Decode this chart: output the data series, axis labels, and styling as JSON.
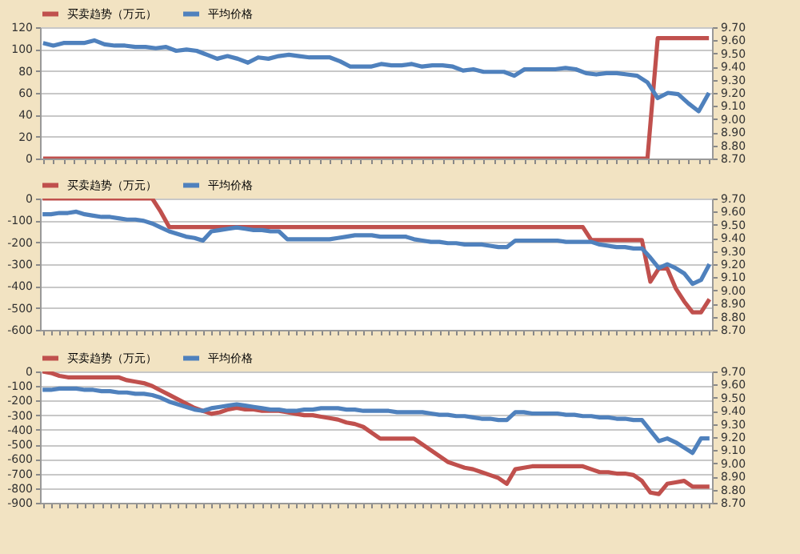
{
  "chart_data": [
    {
      "type": "line",
      "categories": [
        null,
        null,
        null,
        null,
        null,
        null,
        null,
        null,
        null,
        null,
        null,
        null,
        null,
        null,
        null,
        null,
        null,
        null,
        null,
        null,
        null,
        null,
        null,
        null,
        null,
        null,
        null,
        null,
        null,
        null,
        null,
        null,
        null,
        null,
        null,
        null,
        null,
        null,
        null,
        null,
        null,
        null,
        null,
        null,
        null,
        null,
        null,
        null,
        null,
        null,
        null,
        null,
        null,
        null,
        null,
        null,
        null,
        null,
        null,
        null,
        null,
        null,
        null,
        null,
        null,
        null
      ],
      "series": [
        {
          "name": "买卖趋势（万元）",
          "color": "#c0504d",
          "values": [
            0,
            0,
            0,
            0,
            0,
            0,
            0,
            0,
            0,
            0,
            0,
            0,
            0,
            0,
            0,
            0,
            0,
            0,
            0,
            0,
            0,
            0,
            0,
            0,
            0,
            0,
            0,
            0,
            0,
            0,
            0,
            0,
            0,
            0,
            0,
            0,
            0,
            0,
            0,
            0,
            0,
            0,
            0,
            0,
            0,
            0,
            0,
            0,
            0,
            0,
            0,
            0,
            0,
            0,
            0,
            0,
            0,
            0,
            0,
            0,
            110,
            110,
            110,
            110,
            110,
            110
          ]
        },
        {
          "name": "平均价格",
          "color": "#4f81bd",
          "axis": "y2",
          "values": [
            9.58,
            9.56,
            9.58,
            9.58,
            9.58,
            9.6,
            9.57,
            9.56,
            9.56,
            9.55,
            9.55,
            9.54,
            9.55,
            9.52,
            9.53,
            9.52,
            9.49,
            9.46,
            9.48,
            9.46,
            9.43,
            9.47,
            9.46,
            9.48,
            9.49,
            9.48,
            9.47,
            9.47,
            9.47,
            9.44,
            9.4,
            9.4,
            9.4,
            9.42,
            9.41,
            9.41,
            9.42,
            9.4,
            9.41,
            9.41,
            9.4,
            9.37,
            9.38,
            9.36,
            9.36,
            9.36,
            9.33,
            9.38,
            9.38,
            9.38,
            9.38,
            9.39,
            9.38,
            9.35,
            9.34,
            9.35,
            9.35,
            9.34,
            9.33,
            9.28,
            9.16,
            9.2,
            9.19,
            9.12,
            9.06,
            9.2
          ]
        }
      ],
      "ylim": [
        0,
        120
      ],
      "yticks": [
        0,
        20,
        40,
        60,
        80,
        100,
        120
      ],
      "y2lim": [
        8.7,
        9.7
      ],
      "y2ticks": [
        {
          "value": 8.7,
          "label": "8.70"
        },
        {
          "value": 8.8,
          "label": "8.80"
        },
        {
          "value": 8.9,
          "label": "8.90"
        },
        {
          "value": 9.0,
          "label": "9.00"
        },
        {
          "value": 9.1,
          "label": "9.10"
        },
        {
          "value": 9.2,
          "label": "9.20"
        },
        {
          "value": 9.3,
          "label": "9.30"
        },
        {
          "value": 9.4,
          "label": "9.40"
        },
        {
          "value": 9.5,
          "label": "9.50"
        },
        {
          "value": 9.6,
          "label": "9.60"
        },
        {
          "value": 9.7,
          "label": "9.70"
        }
      ],
      "grid": "y",
      "legend": "top"
    },
    {
      "type": "line",
      "categories": [
        null,
        null,
        null,
        null,
        null,
        null,
        null,
        null,
        null,
        null,
        null,
        null,
        null,
        null,
        null,
        null,
        null,
        null,
        null,
        null,
        null,
        null,
        null,
        null,
        null,
        null,
        null,
        null,
        null,
        null,
        null,
        null,
        null,
        null,
        null,
        null,
        null,
        null,
        null,
        null,
        null,
        null,
        null,
        null,
        null,
        null,
        null,
        null,
        null,
        null,
        null,
        null,
        null,
        null,
        null,
        null,
        null,
        null,
        null,
        null,
        null,
        null,
        null,
        null,
        null,
        null,
        null,
        null,
        null,
        null,
        null,
        null,
        null,
        null,
        null,
        null,
        null,
        null,
        null,
        null
      ],
      "series": [
        {
          "name": "买卖趋势（万元）",
          "color": "#c0504d",
          "values": [
            0,
            0,
            0,
            0,
            0,
            0,
            0,
            0,
            0,
            0,
            0,
            0,
            0,
            0,
            -60,
            -130,
            -130,
            -130,
            -130,
            -130,
            -130,
            -130,
            -130,
            -130,
            -130,
            -130,
            -130,
            -130,
            -130,
            -130,
            -130,
            -130,
            -130,
            -130,
            -130,
            -130,
            -130,
            -130,
            -130,
            -130,
            -130,
            -130,
            -130,
            -130,
            -130,
            -130,
            -130,
            -130,
            -130,
            -130,
            -130,
            -130,
            -130,
            -130,
            -130,
            -130,
            -130,
            -130,
            -130,
            -130,
            -130,
            -130,
            -130,
            -130,
            -130,
            -190,
            -190,
            -190,
            -190,
            -190,
            -190,
            -190,
            -380,
            -320,
            -320,
            -410,
            -470,
            -520,
            -520,
            -460
          ]
        },
        {
          "name": "平均价格",
          "color": "#4f81bd",
          "axis": "y2",
          "values": [
            9.58,
            9.58,
            9.59,
            9.59,
            9.6,
            9.58,
            9.57,
            9.56,
            9.56,
            9.55,
            9.54,
            9.54,
            9.53,
            9.51,
            9.48,
            9.45,
            9.43,
            9.41,
            9.4,
            9.38,
            9.45,
            9.46,
            9.47,
            9.48,
            9.47,
            9.46,
            9.46,
            9.45,
            9.45,
            9.39,
            9.39,
            9.39,
            9.39,
            9.39,
            9.39,
            9.4,
            9.41,
            9.42,
            9.42,
            9.42,
            9.41,
            9.41,
            9.41,
            9.41,
            9.39,
            9.38,
            9.37,
            9.37,
            9.36,
            9.36,
            9.35,
            9.35,
            9.35,
            9.34,
            9.33,
            9.33,
            9.38,
            9.38,
            9.38,
            9.38,
            9.38,
            9.38,
            9.37,
            9.37,
            9.37,
            9.37,
            9.35,
            9.34,
            9.33,
            9.33,
            9.32,
            9.32,
            9.25,
            9.17,
            9.2,
            9.17,
            9.13,
            9.05,
            9.08,
            9.2
          ]
        }
      ],
      "ylim": [
        -600,
        0
      ],
      "yticks": [
        -600,
        -500,
        -400,
        -300,
        -200,
        -100,
        0
      ],
      "y2lim": [
        8.7,
        9.7
      ],
      "y2ticks": [
        {
          "value": 8.7,
          "label": "8.70"
        },
        {
          "value": 8.8,
          "label": "8.80"
        },
        {
          "value": 8.9,
          "label": "8.90"
        },
        {
          "value": 9.0,
          "label": "9.00"
        },
        {
          "value": 9.1,
          "label": "9.10"
        },
        {
          "value": 9.2,
          "label": "9.20"
        },
        {
          "value": 9.3,
          "label": "9.30"
        },
        {
          "value": 9.4,
          "label": "9.40"
        },
        {
          "value": 9.5,
          "label": "9.50"
        },
        {
          "value": 9.6,
          "label": "9.60"
        },
        {
          "value": 9.7,
          "label": "9.70"
        }
      ],
      "grid": "y",
      "legend": "top"
    },
    {
      "type": "line",
      "categories": [
        null,
        null,
        null,
        null,
        null,
        null,
        null,
        null,
        null,
        null,
        null,
        null,
        null,
        null,
        null,
        null,
        null,
        null,
        null,
        null,
        null,
        null,
        null,
        null,
        null,
        null,
        null,
        null,
        null,
        null,
        null,
        null,
        null,
        null,
        null,
        null,
        null,
        null,
        null,
        null,
        null,
        null,
        null,
        null,
        null,
        null,
        null,
        null,
        null,
        null,
        null,
        null,
        null,
        null,
        null,
        null,
        null,
        null,
        null,
        null,
        null,
        null,
        null,
        null,
        null,
        null,
        null,
        null,
        null,
        null,
        null,
        null,
        null,
        null,
        null,
        null,
        null,
        null,
        null,
        null
      ],
      "series": [
        {
          "name": "买卖趋势（万元）",
          "color": "#c0504d",
          "values": [
            0,
            -10,
            -30,
            -40,
            -40,
            -40,
            -40,
            -40,
            -40,
            -40,
            -60,
            -70,
            -80,
            -100,
            -130,
            -160,
            -190,
            -220,
            -250,
            -270,
            -290,
            -280,
            -260,
            -250,
            -260,
            -260,
            -270,
            -270,
            -270,
            -280,
            -290,
            -300,
            -300,
            -310,
            -320,
            -330,
            -350,
            -360,
            -380,
            -420,
            -460,
            -460,
            -460,
            -460,
            -460,
            -500,
            -540,
            -580,
            -620,
            -640,
            -660,
            -670,
            -690,
            -710,
            -730,
            -770,
            -670,
            -660,
            -650,
            -650,
            -650,
            -650,
            -650,
            -650,
            -650,
            -670,
            -690,
            -690,
            -700,
            -700,
            -710,
            -750,
            -830,
            -840,
            -770,
            -760,
            -750,
            -790,
            -790,
            -790
          ]
        },
        {
          "name": "平均价格",
          "color": "#4f81bd",
          "axis": "y2",
          "values": [
            9.56,
            9.56,
            9.57,
            9.57,
            9.57,
            9.56,
            9.56,
            9.55,
            9.55,
            9.54,
            9.54,
            9.53,
            9.53,
            9.52,
            9.5,
            9.47,
            9.45,
            9.43,
            9.41,
            9.4,
            9.42,
            9.43,
            9.44,
            9.45,
            9.44,
            9.43,
            9.42,
            9.41,
            9.41,
            9.4,
            9.4,
            9.41,
            9.41,
            9.42,
            9.42,
            9.42,
            9.41,
            9.41,
            9.4,
            9.4,
            9.4,
            9.4,
            9.39,
            9.39,
            9.39,
            9.39,
            9.38,
            9.37,
            9.37,
            9.36,
            9.36,
            9.35,
            9.34,
            9.34,
            9.33,
            9.33,
            9.39,
            9.39,
            9.38,
            9.38,
            9.38,
            9.38,
            9.37,
            9.37,
            9.36,
            9.36,
            9.35,
            9.35,
            9.34,
            9.34,
            9.33,
            9.33,
            9.25,
            9.17,
            9.19,
            9.16,
            9.12,
            9.08,
            9.19,
            9.19
          ]
        }
      ],
      "ylim": [
        -900,
        0
      ],
      "yticks": [
        -900,
        -800,
        -700,
        -600,
        -500,
        -400,
        -300,
        -200,
        -100,
        0
      ],
      "y2lim": [
        8.7,
        9.7
      ],
      "y2ticks": [
        {
          "value": 8.7,
          "label": "8.70"
        },
        {
          "value": 8.8,
          "label": "8.80"
        },
        {
          "value": 8.9,
          "label": "8.90"
        },
        {
          "value": 9.0,
          "label": "9.00"
        },
        {
          "value": 9.1,
          "label": "9.10"
        },
        {
          "value": 9.2,
          "label": "9.20"
        },
        {
          "value": 9.3,
          "label": "9.30"
        },
        {
          "value": 9.4,
          "label": "9.40"
        },
        {
          "value": 9.5,
          "label": "9.50"
        },
        {
          "value": 9.6,
          "label": "9.60"
        },
        {
          "value": 9.7,
          "label": "9.70"
        }
      ],
      "grid": "y",
      "legend": "top"
    }
  ]
}
